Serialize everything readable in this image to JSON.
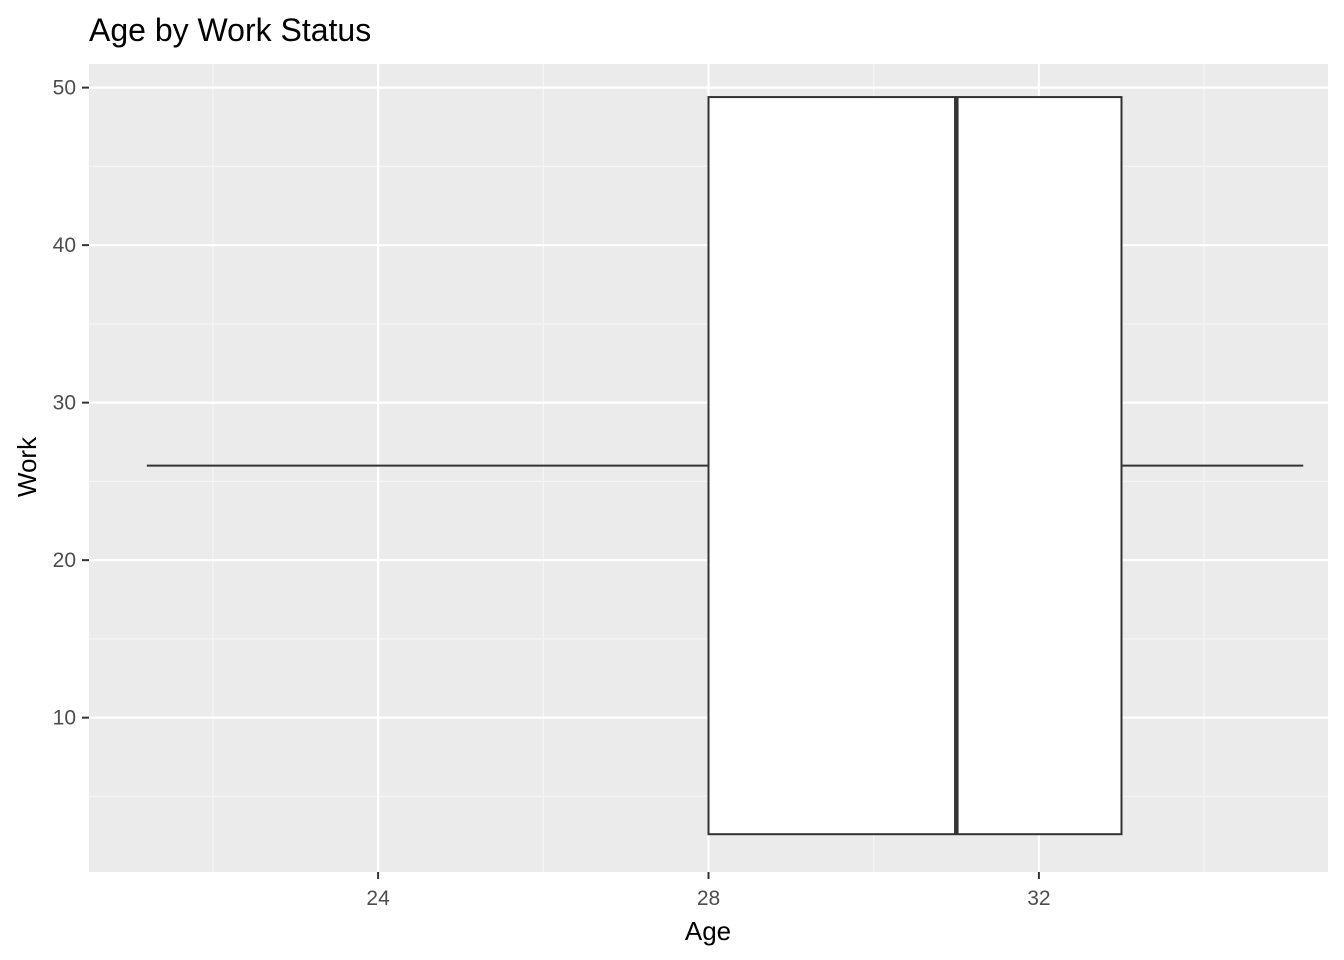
{
  "chart_data": {
    "type": "boxplot",
    "orientation": "horizontal",
    "title": "Age by Work Status",
    "xlabel": "Age",
    "ylabel": "Work",
    "xlim": [
      20.5,
      35.5
    ],
    "ylim": [
      0.2,
      51.5
    ],
    "x_ticks": [
      24,
      28,
      32
    ],
    "x_tick_labels": [
      "24",
      "28",
      "32"
    ],
    "y_ticks": [
      10,
      20,
      30,
      40,
      50
    ],
    "y_tick_labels": [
      "10",
      "20",
      "30",
      "40",
      "50"
    ],
    "grid": true,
    "legend": "none",
    "box": {
      "whisker_low": 21.2,
      "q1": 28,
      "median": 31,
      "q3": 33,
      "whisker_high": 35.2,
      "y_center": 26,
      "y_min": 2.6,
      "y_max": 49.4
    },
    "colors": {
      "panel_background": "#ebebeb",
      "grid_major": "#ffffff",
      "grid_minor": "#f5f5f5",
      "box_fill": "#ffffff",
      "box_stroke": "#333333",
      "tick_label": "#4d4d4d",
      "axis_ticks": "#333333"
    }
  }
}
